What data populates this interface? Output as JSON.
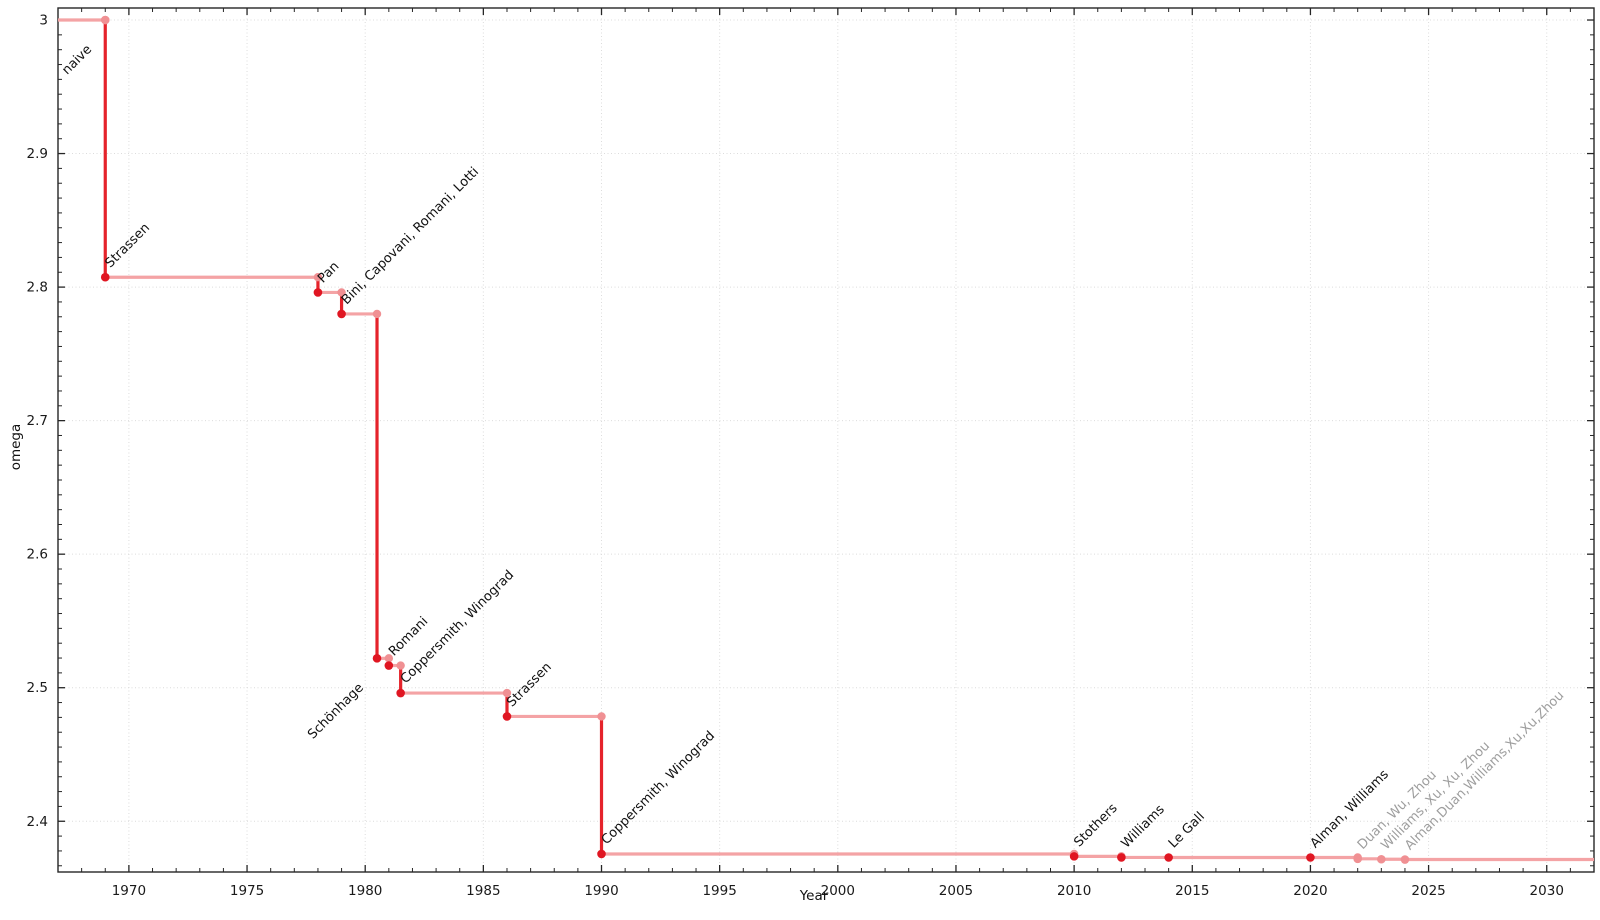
{
  "chart_data": {
    "type": "line",
    "subtype": "step",
    "title": "",
    "xlabel": "Year",
    "ylabel": "omega",
    "xlim": [
      1967,
      2032
    ],
    "ylim": [
      2.362,
      3.009
    ],
    "grid": "major-dotted",
    "legend": "none",
    "xticks": {
      "values": [
        1970,
        1975,
        1980,
        1985,
        1990,
        1995,
        2000,
        2005,
        2010,
        2015,
        2020,
        2025,
        2030
      ],
      "labels": [
        "1970",
        "1975",
        "1980",
        "1985",
        "1990",
        "1995",
        "2000",
        "2005",
        "2010",
        "2015",
        "2020",
        "2025",
        "2030"
      ]
    },
    "yticks": {
      "values": [
        3.0,
        2.9,
        2.8,
        2.7,
        2.6,
        2.5,
        2.4
      ],
      "labels": [
        "3",
        "2.9",
        "2.8",
        "2.7",
        "2.6",
        "2.5",
        "2.4"
      ]
    },
    "x_minor_step_years": 1,
    "y_minor_divisions": 9,
    "start": {
      "year": 1967,
      "omega": 3.0
    },
    "events": [
      {
        "label": "naive",
        "year": 1969,
        "omega": 3.0,
        "point": "light",
        "label_color": "black",
        "label_side": "below"
      },
      {
        "label": "Strassen",
        "year": 1969,
        "omega": 2.8074,
        "point": "dark",
        "label_color": "black",
        "label_side": "above"
      },
      {
        "label": "Pan",
        "year": 1978,
        "omega": 2.796,
        "point": "dark",
        "label_color": "black",
        "label_side": "above"
      },
      {
        "label": "Bini, Capovani, Romani, Lotti",
        "year": 1979,
        "omega": 2.7799,
        "point": "dark",
        "label_color": "black",
        "label_side": "above"
      },
      {
        "label": "Schönhage",
        "year": 1980.5,
        "omega": 2.522,
        "point": "dark",
        "label_color": "black",
        "label_side": "below"
      },
      {
        "label": "Romani",
        "year": 1981,
        "omega": 2.5166,
        "point": "dark",
        "label_color": "black",
        "label_side": "above"
      },
      {
        "label": "Coppersmith, Winograd",
        "year": 1981.5,
        "omega": 2.496,
        "point": "dark",
        "label_color": "black",
        "label_side": "above"
      },
      {
        "label": "Strassen",
        "year": 1986,
        "omega": 2.4785,
        "point": "dark",
        "label_color": "black",
        "label_side": "above"
      },
      {
        "label": "Coppersmith, Winograd",
        "year": 1990,
        "omega": 2.3755,
        "point": "dark",
        "label_color": "black",
        "label_side": "above"
      },
      {
        "label": "Stothers",
        "year": 2010,
        "omega": 2.3737,
        "point": "dark",
        "label_color": "black",
        "label_side": "above"
      },
      {
        "label": "Williams",
        "year": 2012,
        "omega": 2.3729,
        "point": "dark",
        "label_color": "black",
        "label_side": "above"
      },
      {
        "label": "Le Gall",
        "year": 2014,
        "omega": 2.3728639,
        "point": "dark",
        "label_color": "black",
        "label_side": "above"
      },
      {
        "label": "Alman, Williams",
        "year": 2020,
        "omega": 2.3728596,
        "point": "dark",
        "label_color": "black",
        "label_side": "above"
      },
      {
        "label": "Duan, Wu, Zhou",
        "year": 2022,
        "omega": 2.371866,
        "point": "light",
        "label_color": "gray",
        "label_side": "above"
      },
      {
        "label": "Williams, Xu, Xu, Zhou",
        "year": 2023,
        "omega": 2.371552,
        "point": "light",
        "label_color": "gray",
        "label_side": "above"
      },
      {
        "label": "Alman,Duan,Williams,Xu,Xu,Zhou",
        "year": 2024,
        "omega": 2.371339,
        "point": "light",
        "label_color": "gray",
        "label_side": "above"
      }
    ],
    "colors": {
      "step_dark": "#e5232b",
      "step_light": "#f4a3a5",
      "point_dark": "#e01622",
      "point_light": "#f09093",
      "label_black": "#111111",
      "label_gray": "#9e9e9e",
      "grid": "#dcdcdc",
      "frame": "#262626",
      "background": "#ffffff"
    }
  }
}
